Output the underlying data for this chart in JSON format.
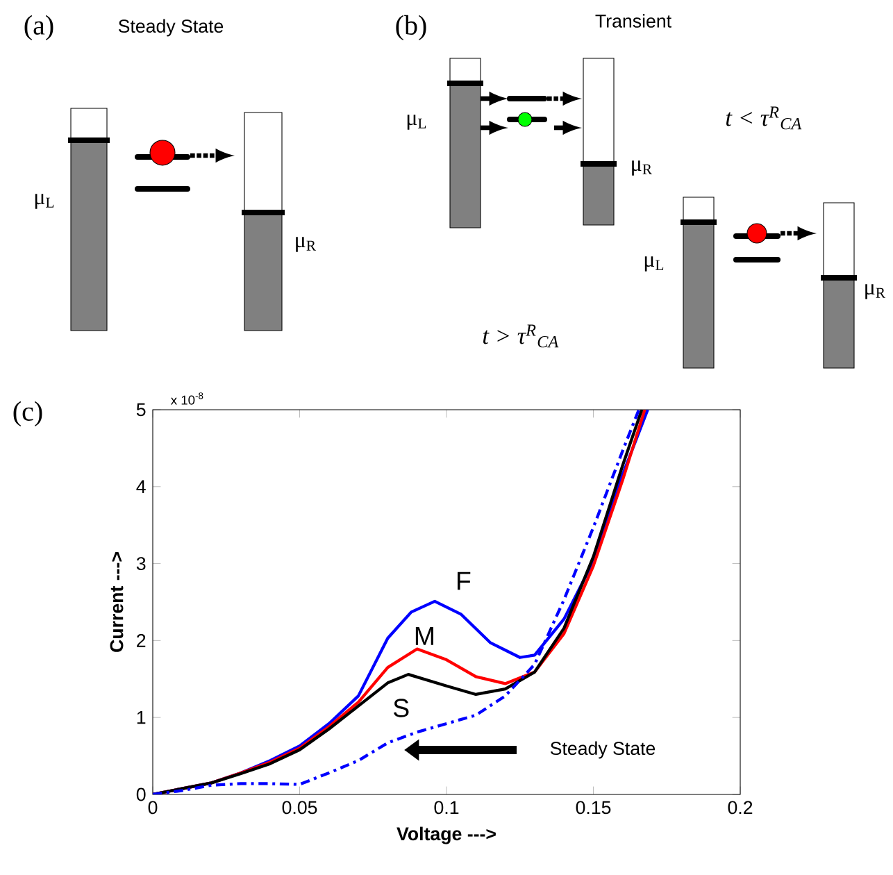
{
  "chart_data": {
    "type": "line",
    "xlabel": "Voltage --->",
    "ylabel": "Current --->",
    "xlim": [
      0,
      0.2
    ],
    "ylim": [
      0,
      5
    ],
    "xticks": [
      0,
      0.05,
      0.1,
      0.15,
      0.2
    ],
    "yticks": [
      0,
      1,
      2,
      3,
      4,
      5
    ],
    "series": [
      {
        "name": "F",
        "color": "#0000ff",
        "line_style": "solid",
        "x": [
          0,
          0.02,
          0.03,
          0.04,
          0.05,
          0.06,
          0.07,
          0.08,
          0.088,
          0.096,
          0.105,
          0.115,
          0.125,
          0.13,
          0.14,
          0.15,
          0.16,
          0.1685
        ],
        "values": [
          0,
          0.15,
          0.28,
          0.44,
          0.63,
          0.92,
          1.28,
          2.03,
          2.37,
          2.51,
          2.34,
          1.97,
          1.78,
          1.81,
          2.28,
          3.03,
          4.16,
          5.0
        ]
      },
      {
        "name": "M",
        "color": "#ff0000",
        "line_style": "solid",
        "x": [
          0,
          0.02,
          0.03,
          0.04,
          0.05,
          0.06,
          0.07,
          0.08,
          0.09,
          0.1,
          0.11,
          0.12,
          0.13,
          0.14,
          0.15,
          0.16,
          0.1675
        ],
        "values": [
          0,
          0.15,
          0.28,
          0.42,
          0.6,
          0.88,
          1.2,
          1.65,
          1.89,
          1.75,
          1.53,
          1.44,
          1.59,
          2.09,
          2.97,
          4.09,
          5.0
        ]
      },
      {
        "name": "S",
        "color": "#000000",
        "line_style": "solid",
        "x": [
          0,
          0.02,
          0.03,
          0.04,
          0.05,
          0.06,
          0.07,
          0.08,
          0.087,
          0.1,
          0.11,
          0.12,
          0.13,
          0.14,
          0.15,
          0.16,
          0.1665
        ],
        "values": [
          0,
          0.15,
          0.27,
          0.4,
          0.58,
          0.85,
          1.15,
          1.45,
          1.56,
          1.41,
          1.3,
          1.37,
          1.59,
          2.16,
          3.09,
          4.28,
          5.0
        ]
      },
      {
        "color": "#0000ff",
        "line_style": "dashdot",
        "x": [
          0,
          0.01,
          0.02,
          0.03,
          0.04,
          0.05,
          0.06,
          0.07,
          0.08,
          0.09,
          0.1,
          0.11,
          0.12,
          0.13,
          0.14,
          0.15,
          0.16,
          0.1655
        ],
        "values": [
          0,
          0.05,
          0.12,
          0.14,
          0.14,
          0.13,
          0.28,
          0.44,
          0.67,
          0.81,
          0.92,
          1.03,
          1.28,
          1.69,
          2.53,
          3.47,
          4.47,
          5.0
        ]
      }
    ],
    "annotations": [
      "(a)",
      "Steady State",
      "(b)",
      "Transient",
      "μ$_{L}$",
      "μ$_{R}$",
      "μ$_{L}$",
      "μ$_{R}$",
      "t < τ$^{R}$$_{CA}$",
      "μ$_{L}$",
      "μ$_{R}$",
      "t > τ$^{R}$$_{CA}$",
      "(c)",
      "x 10$^{-8}$",
      "Steady State"
    ]
  }
}
